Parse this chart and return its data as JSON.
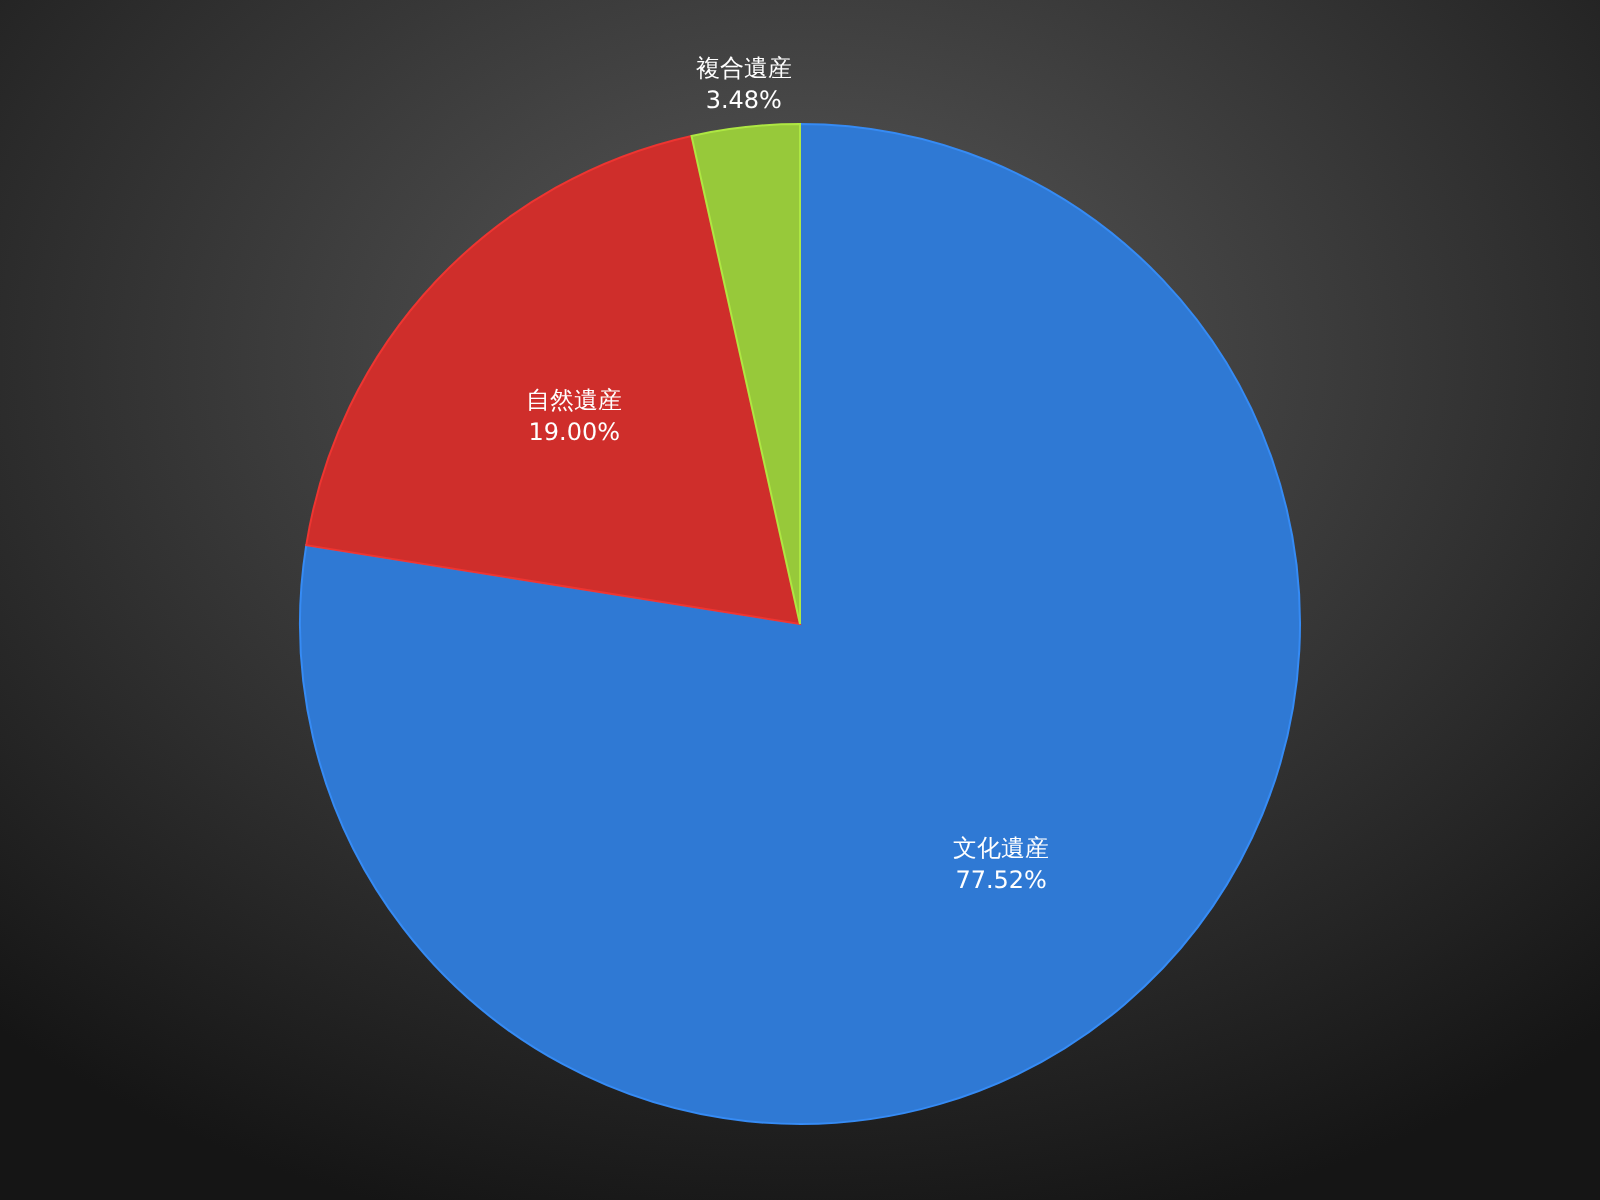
{
  "chart_data": {
    "type": "pie",
    "categories": [
      "文化遺産",
      "自然遺産",
      "複合遺産"
    ],
    "values": [
      77.52,
      19.0,
      3.48
    ],
    "colors": [
      "#2f79d4",
      "#cf2e2b",
      "#97c93a"
    ],
    "value_labels": [
      "77.52%",
      "19.00%",
      "3.48%"
    ]
  }
}
